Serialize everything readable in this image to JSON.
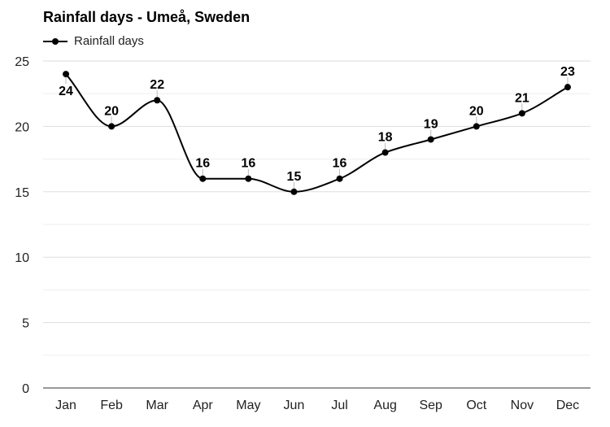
{
  "chart_data": {
    "type": "line",
    "title": "Rainfall days - Umeå, Sweden",
    "xlabel": "",
    "ylabel": "",
    "categories": [
      "Jan",
      "Feb",
      "Mar",
      "Apr",
      "May",
      "Jun",
      "Jul",
      "Aug",
      "Sep",
      "Oct",
      "Nov",
      "Dec"
    ],
    "series": [
      {
        "name": "Rainfall days",
        "values": [
          24,
          20,
          22,
          16,
          16,
          15,
          16,
          18,
          19,
          20,
          21,
          23
        ]
      }
    ],
    "ylim": [
      0,
      25
    ],
    "yticks": [
      0,
      5,
      10,
      15,
      20,
      25
    ],
    "grid": true,
    "legend": "top-left",
    "line_color": "#000000"
  }
}
